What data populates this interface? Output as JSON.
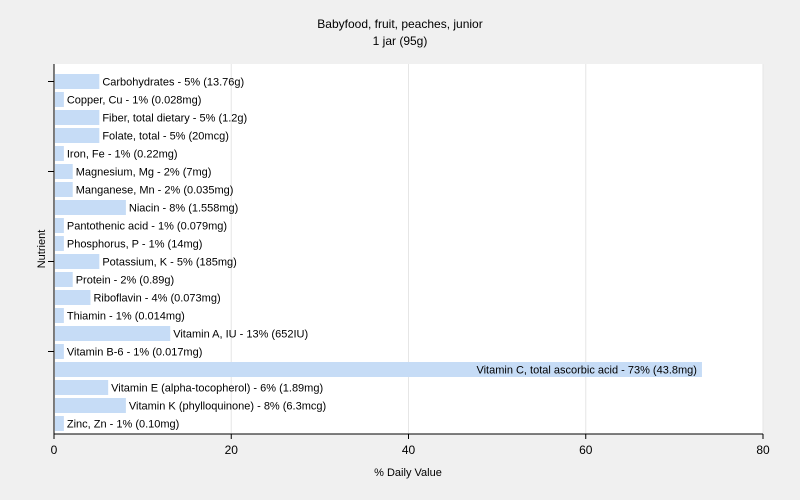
{
  "chart_data": {
    "type": "bar",
    "orientation": "horizontal",
    "title": "Babyfood, fruit, peaches, junior",
    "subtitle": "1 jar (95g)",
    "xlabel": "% Daily Value",
    "ylabel": "Nutrient",
    "xlim": [
      0,
      80
    ],
    "xticks": [
      0,
      20,
      40,
      60,
      80
    ],
    "grid": true,
    "bar_color": "#c6dcf6",
    "categories": [
      "Carbohydrates",
      "Copper, Cu",
      "Fiber, total dietary",
      "Folate, total",
      "Iron, Fe",
      "Magnesium, Mg",
      "Manganese, Mn",
      "Niacin",
      "Pantothenic acid",
      "Phosphorus, P",
      "Potassium, K",
      "Protein",
      "Riboflavin",
      "Thiamin",
      "Vitamin A, IU",
      "Vitamin B-6",
      "Vitamin C, total ascorbic acid",
      "Vitamin E (alpha-tocopherol)",
      "Vitamin K (phylloquinone)",
      "Zinc, Zn"
    ],
    "values": [
      5,
      1,
      5,
      5,
      1,
      2,
      2,
      8,
      1,
      1,
      5,
      2,
      4,
      1,
      13,
      1,
      73,
      6,
      8,
      1
    ],
    "labels": [
      "Carbohydrates - 5% (13.76g)",
      "Copper, Cu - 1% (0.028mg)",
      "Fiber, total dietary - 5% (1.2g)",
      "Folate, total - 5% (20mcg)",
      "Iron, Fe - 1% (0.22mg)",
      "Magnesium, Mg - 2% (7mg)",
      "Manganese, Mn - 2% (0.035mg)",
      "Niacin - 8% (1.558mg)",
      "Pantothenic acid - 1% (0.079mg)",
      "Phosphorus, P - 1% (14mg)",
      "Potassium, K - 5% (185mg)",
      "Protein - 2% (0.89g)",
      "Riboflavin - 4% (0.073mg)",
      "Thiamin - 1% (0.014mg)",
      "Vitamin A, IU - 13% (652IU)",
      "Vitamin B-6 - 1% (0.017mg)",
      "Vitamin C, total ascorbic acid - 73% (43.8mg)",
      "Vitamin E (alpha-tocopherol) - 6% (1.89mg)",
      "Vitamin K (phylloquinone) - 8% (6.3mcg)",
      "Zinc, Zn - 1% (0.10mg)"
    ]
  }
}
